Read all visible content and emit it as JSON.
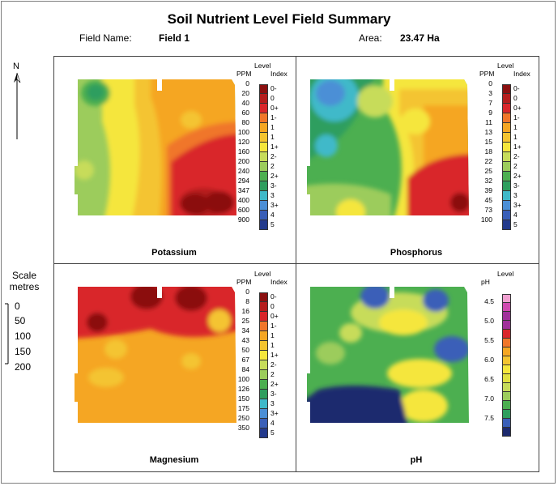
{
  "title": "Soil Nutrient Level Field Summary",
  "field_name_label": "Field Name:",
  "field_name_value": "Field 1",
  "area_label": "Area:",
  "area_value": "23.47 Ha",
  "north_label": "N",
  "scale": {
    "title_line1": "Scale",
    "title_line2": "metres",
    "ticks": [
      "0",
      "50",
      "100",
      "150",
      "200"
    ]
  },
  "panels": {
    "potassium": {
      "name": "Potassium",
      "header_level": "Level",
      "header_ppm": "PPM",
      "header_index": "Index",
      "ppm": [
        "0",
        "20",
        "40",
        "60",
        "80",
        "100",
        "120",
        "160",
        "200",
        "240",
        "294",
        "347",
        "400",
        "600",
        "900"
      ],
      "index": [
        "0-",
        "0",
        "0+",
        "1-",
        "1",
        "1",
        "1+",
        "2-",
        "2",
        "2+",
        "3-",
        "3",
        "3+",
        "4",
        "5"
      ],
      "colors": [
        "#8b1010",
        "#b51d1d",
        "#d9262b",
        "#f0762a",
        "#f5a623",
        "#f4c430",
        "#f5e63c",
        "#c7dc5a",
        "#9ccc5c",
        "#4caf50",
        "#2e9e5e",
        "#3fb9c9",
        "#4c8fd6",
        "#3a5fb8",
        "#233a8c"
      ]
    },
    "phosphorus": {
      "name": "Phosphorus",
      "header_level": "Level",
      "header_ppm": "PPM",
      "header_index": "Index",
      "ppm": [
        "0",
        "3",
        "7",
        "9",
        "11",
        "13",
        "15",
        "18",
        "22",
        "25",
        "32",
        "39",
        "45",
        "73",
        "100"
      ],
      "index": [
        "0-",
        "0",
        "0+",
        "1-",
        "1",
        "1",
        "1+",
        "2-",
        "2",
        "2+",
        "3-",
        "3",
        "3+",
        "4",
        "5"
      ],
      "colors": [
        "#8b1010",
        "#b51d1d",
        "#d9262b",
        "#f0762a",
        "#f5a623",
        "#f4c430",
        "#f5e63c",
        "#c7dc5a",
        "#9ccc5c",
        "#4caf50",
        "#2e9e5e",
        "#3fb9c9",
        "#4c8fd6",
        "#3a5fb8",
        "#233a8c"
      ]
    },
    "magnesium": {
      "name": "Magnesium",
      "header_level": "Level",
      "header_ppm": "PPM",
      "header_index": "Index",
      "ppm": [
        "0",
        "8",
        "16",
        "25",
        "34",
        "43",
        "50",
        "67",
        "84",
        "100",
        "126",
        "150",
        "175",
        "250",
        "350"
      ],
      "index": [
        "0-",
        "0",
        "0+",
        "1-",
        "1",
        "1",
        "1+",
        "2-",
        "2",
        "2+",
        "3-",
        "3",
        "3+",
        "4",
        "5"
      ],
      "colors": [
        "#8b1010",
        "#b51d1d",
        "#d9262b",
        "#f0762a",
        "#f5a623",
        "#f4c430",
        "#f5e63c",
        "#c7dc5a",
        "#9ccc5c",
        "#4caf50",
        "#2e9e5e",
        "#3fb9c9",
        "#4c8fd6",
        "#3a5fb8",
        "#233a8c"
      ]
    },
    "ph": {
      "name": "pH",
      "header_level": "Level",
      "header_ppm": "pH",
      "ph_labels": [
        "4.5",
        "5.0",
        "5.5",
        "6.0",
        "6.5",
        "7.0",
        "7.5"
      ],
      "colors": [
        "#f0a0d0",
        "#d04ab0",
        "#a0309a",
        "#a0309a",
        "#d9262b",
        "#f0762a",
        "#f5a623",
        "#f4c430",
        "#f5e63c",
        "#e0e040",
        "#c7dc5a",
        "#9ccc5c",
        "#4caf50",
        "#2e9e5e",
        "#3a5fb8",
        "#1d2a6e"
      ]
    }
  }
}
